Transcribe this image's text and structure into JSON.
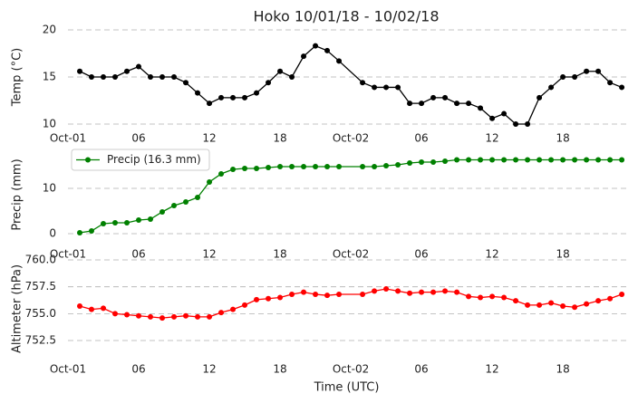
{
  "chart_data": [
    {
      "type": "line",
      "title": "Hoko 10/01/18 - 10/02/18",
      "ylabel": "Temp (°C)",
      "color": "#000000",
      "x": [
        1,
        2,
        3,
        4,
        5,
        6,
        7,
        8,
        9,
        10,
        11,
        12,
        13,
        14,
        15,
        16,
        17,
        18,
        19,
        20,
        21,
        22,
        23,
        25,
        26,
        27,
        28,
        29,
        30,
        31,
        32,
        33,
        34,
        35,
        36,
        37,
        38,
        39,
        40,
        41,
        42,
        43,
        44,
        45,
        46,
        47
      ],
      "values": [
        15.6,
        15.0,
        15.0,
        15.0,
        15.6,
        16.1,
        15.0,
        15.0,
        15.0,
        14.4,
        13.3,
        12.2,
        12.8,
        12.8,
        12.8,
        13.3,
        14.4,
        15.6,
        15.0,
        17.2,
        18.3,
        17.8,
        16.7,
        14.4,
        13.9,
        13.9,
        13.9,
        12.2,
        12.2,
        12.8,
        12.8,
        12.2,
        12.2,
        11.7,
        10.6,
        11.1,
        10.0,
        10.0,
        12.8,
        13.9,
        15.0,
        15.0,
        15.6,
        15.6,
        14.4,
        13.9
      ],
      "xlim": [
        0,
        47.3
      ],
      "xticks": [
        {
          "value": 0,
          "label": "Oct-01"
        },
        {
          "value": 6,
          "label": "06"
        },
        12,
        18,
        {
          "value": 24,
          "label": "Oct-02"
        },
        {
          "value": 30,
          "label": "06"
        },
        {
          "value": 36,
          "label": "12"
        },
        {
          "value": 42,
          "label": "18"
        }
      ],
      "ylim": [
        10,
        20
      ],
      "yticks": [
        10,
        15,
        20
      ],
      "grid": true
    },
    {
      "type": "line",
      "ylabel": "Precip (mm)",
      "legend": "upper left",
      "x": [
        1,
        2,
        3,
        4,
        5,
        6,
        7,
        8,
        9,
        10,
        11,
        12,
        13,
        14,
        15,
        16,
        17,
        18,
        19,
        20,
        21,
        22,
        23,
        25,
        26,
        27,
        28,
        29,
        30,
        31,
        32,
        33,
        34,
        35,
        36,
        37,
        38,
        39,
        40,
        41,
        42,
        43,
        44,
        45,
        46,
        47
      ],
      "series": [
        {
          "name": "Precip (16.3 mm)",
          "color": "#008000",
          "values": [
            0.2,
            0.6,
            2.2,
            2.4,
            2.4,
            3.0,
            3.2,
            4.8,
            6.2,
            7.0,
            8.0,
            11.4,
            13.2,
            14.2,
            14.4,
            14.4,
            14.6,
            14.8,
            14.8,
            14.8,
            14.8,
            14.8,
            14.8,
            14.8,
            14.8,
            15.0,
            15.2,
            15.6,
            15.8,
            15.8,
            16.0,
            16.3,
            16.3,
            16.3,
            16.3,
            16.3,
            16.3,
            16.3,
            16.3,
            16.3,
            16.3,
            16.3,
            16.3,
            16.3,
            16.3,
            16.3
          ]
        }
      ],
      "xlim": [
        0,
        47.3
      ],
      "xticks": [
        {
          "value": 0,
          "label": "Oct-01"
        },
        {
          "value": 6,
          "label": "06"
        },
        12,
        18,
        {
          "value": 24,
          "label": "Oct-02"
        },
        {
          "value": 30,
          "label": "06"
        },
        {
          "value": 36,
          "label": "12"
        },
        {
          "value": 42,
          "label": "18"
        }
      ],
      "ylim": [
        -1.4,
        18.6
      ],
      "yticks": [
        0,
        10
      ],
      "grid": true
    },
    {
      "type": "line",
      "ylabel": "Altimeter (hPa)",
      "xlabel": "Time (UTC)",
      "color": "#ff0000",
      "x": [
        1,
        2,
        3,
        4,
        5,
        6,
        7,
        8,
        9,
        10,
        11,
        12,
        13,
        14,
        15,
        16,
        17,
        18,
        19,
        20,
        21,
        22,
        23,
        25,
        26,
        27,
        28,
        29,
        30,
        31,
        32,
        33,
        34,
        35,
        36,
        37,
        38,
        39,
        40,
        41,
        42,
        43,
        44,
        45,
        46,
        47
      ],
      "values": [
        755.7,
        755.4,
        755.5,
        755.0,
        754.9,
        754.8,
        754.7,
        754.6,
        754.7,
        754.8,
        754.7,
        754.7,
        755.1,
        755.4,
        755.8,
        756.3,
        756.4,
        756.5,
        756.8,
        757.0,
        756.8,
        756.7,
        756.8,
        756.8,
        757.1,
        757.3,
        757.1,
        756.9,
        757.0,
        757.0,
        757.1,
        757.0,
        756.6,
        756.5,
        756.6,
        756.5,
        756.2,
        755.8,
        755.8,
        756.0,
        755.7,
        755.6,
        755.9,
        756.2,
        756.4,
        756.8
      ],
      "xlim": [
        0,
        47.3
      ],
      "xticks": [
        {
          "value": 0,
          "label": "Oct-01"
        },
        {
          "value": 6,
          "label": "06"
        },
        12,
        18,
        {
          "value": 24,
          "label": "Oct-02"
        },
        {
          "value": 30,
          "label": "06"
        },
        {
          "value": 36,
          "label": "12"
        },
        {
          "value": 42,
          "label": "18"
        }
      ],
      "ylim": [
        750.9,
        760
      ],
      "yticks": [
        752.5,
        {
          "value": 755,
          "label": "755.0"
        },
        757.5,
        {
          "value": 760,
          "label": "760.0"
        }
      ],
      "grid": true
    }
  ]
}
